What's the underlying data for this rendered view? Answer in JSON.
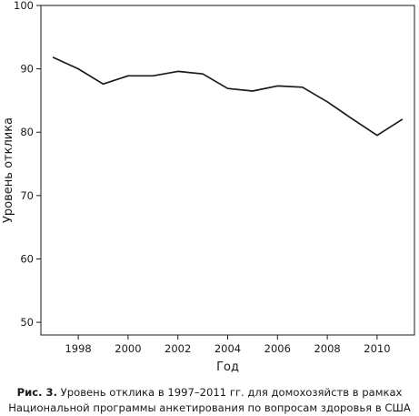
{
  "chart_data": {
    "type": "line",
    "title": "",
    "xlabel": "Год",
    "ylabel": "Уровень отклика",
    "xlim": [
      1996.5,
      2011.5
    ],
    "ylim": [
      48,
      100
    ],
    "xticks": [
      1998,
      2000,
      2002,
      2004,
      2006,
      2008,
      2010
    ],
    "yticks": [
      50,
      60,
      70,
      80,
      90,
      100
    ],
    "grid": false,
    "legend": "none",
    "series": [
      {
        "color": "#1a1a1a",
        "x": [
          1997,
          1998,
          1999,
          2000,
          2001,
          2002,
          2003,
          2004,
          2005,
          2006,
          2007,
          2008,
          2009,
          2010,
          2011
        ],
        "y": [
          91.8,
          90.0,
          87.6,
          88.9,
          88.9,
          89.6,
          89.2,
          86.9,
          86.5,
          87.3,
          87.1,
          84.8,
          82.1,
          79.5,
          82.0
        ]
      }
    ]
  },
  "caption": {
    "label": "Рис. 3.",
    "line1": "Уровень отклика в 1997–2011 гг. для домохозяйств в рамках",
    "line2": "Национальной программы анкетирования по вопросам здоровья в США"
  }
}
